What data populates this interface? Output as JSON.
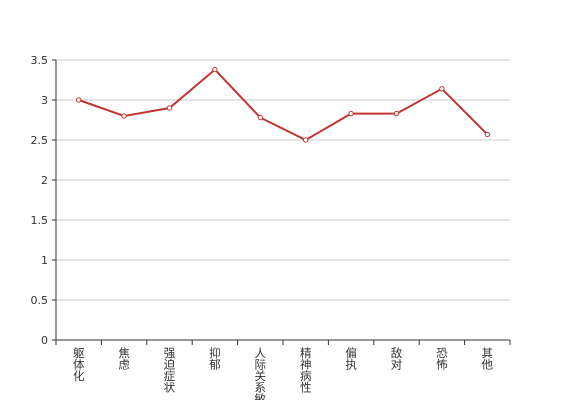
{
  "chart_data": {
    "type": "line",
    "categories": [
      "躯体化",
      "焦虑",
      "强迫症状",
      "抑郁",
      "人际关系敏感",
      "精神病性",
      "偏执",
      "敌对",
      "恐怖",
      "其他"
    ],
    "values": [
      3.0,
      2.8,
      2.9,
      3.38,
      2.78,
      2.5,
      2.83,
      2.83,
      3.14,
      2.57
    ],
    "color": "#c23531",
    "ylim": [
      0,
      3.5
    ],
    "yticks": [
      0,
      0.5,
      1,
      1.5,
      2,
      2.5,
      3,
      3.5
    ],
    "grid": true
  }
}
